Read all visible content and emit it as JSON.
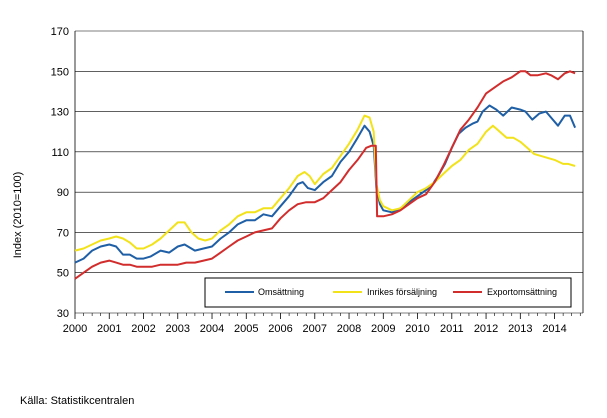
{
  "source_text": "Källa: Statistikcentralen",
  "colors": {
    "omsattning": "#1f5fa6",
    "inrikes": "#f2e21a",
    "export": "#d22d2d",
    "grid": "#000000",
    "background": "#ffffff"
  },
  "chart_data": {
    "type": "line",
    "ylabel": "Index (2010=100)",
    "ylim": [
      30,
      170
    ],
    "yticks": [
      30,
      50,
      70,
      90,
      110,
      130,
      150,
      170
    ],
    "xlim": [
      2000,
      2014.83
    ],
    "xticks": [
      "2000",
      "2001",
      "2002",
      "2003",
      "2004",
      "2005",
      "2006",
      "2007",
      "2008",
      "2009",
      "2010",
      "2011",
      "2012",
      "2013",
      "2014"
    ],
    "grid": "horizontal",
    "legend_position": "lower-right-inside",
    "series": [
      {
        "name": "Omsättning",
        "color": "#1f5fa6",
        "points": [
          [
            2000.0,
            55
          ],
          [
            2000.25,
            57
          ],
          [
            2000.5,
            61
          ],
          [
            2000.75,
            63
          ],
          [
            2001.0,
            64
          ],
          [
            2001.2,
            63
          ],
          [
            2001.4,
            59
          ],
          [
            2001.6,
            59
          ],
          [
            2001.8,
            57
          ],
          [
            2002.0,
            57
          ],
          [
            2002.2,
            58
          ],
          [
            2002.5,
            61
          ],
          [
            2002.75,
            60
          ],
          [
            2003.0,
            63
          ],
          [
            2003.2,
            64
          ],
          [
            2003.5,
            61
          ],
          [
            2003.75,
            62
          ],
          [
            2004.0,
            63
          ],
          [
            2004.25,
            67
          ],
          [
            2004.5,
            70
          ],
          [
            2004.75,
            74
          ],
          [
            2005.0,
            76
          ],
          [
            2005.25,
            76
          ],
          [
            2005.5,
            79
          ],
          [
            2005.75,
            78
          ],
          [
            2006.0,
            83
          ],
          [
            2006.25,
            88
          ],
          [
            2006.5,
            94
          ],
          [
            2006.65,
            95
          ],
          [
            2006.8,
            92
          ],
          [
            2007.0,
            91
          ],
          [
            2007.25,
            95
          ],
          [
            2007.5,
            98
          ],
          [
            2007.75,
            105
          ],
          [
            2008.0,
            110
          ],
          [
            2008.25,
            117
          ],
          [
            2008.45,
            123
          ],
          [
            2008.6,
            120
          ],
          [
            2008.72,
            113
          ],
          [
            2008.8,
            92
          ],
          [
            2008.9,
            84
          ],
          [
            2009.0,
            81
          ],
          [
            2009.25,
            80
          ],
          [
            2009.5,
            82
          ],
          [
            2009.75,
            85
          ],
          [
            2010.0,
            88
          ],
          [
            2010.25,
            91
          ],
          [
            2010.4,
            93
          ],
          [
            2010.6,
            98
          ],
          [
            2010.8,
            104
          ],
          [
            2011.0,
            112
          ],
          [
            2011.2,
            119
          ],
          [
            2011.4,
            122
          ],
          [
            2011.6,
            124
          ],
          [
            2011.75,
            125
          ],
          [
            2011.9,
            130
          ],
          [
            2012.1,
            133
          ],
          [
            2012.3,
            131
          ],
          [
            2012.5,
            128
          ],
          [
            2012.75,
            132
          ],
          [
            2013.0,
            131
          ],
          [
            2013.15,
            130
          ],
          [
            2013.35,
            126
          ],
          [
            2013.55,
            129
          ],
          [
            2013.75,
            130
          ],
          [
            2013.9,
            127
          ],
          [
            2014.1,
            123
          ],
          [
            2014.3,
            128
          ],
          [
            2014.45,
            128
          ],
          [
            2014.6,
            122
          ]
        ]
      },
      {
        "name": "Inrikes försäljning",
        "color": "#f2e21a",
        "points": [
          [
            2000.0,
            61
          ],
          [
            2000.25,
            62
          ],
          [
            2000.5,
            64
          ],
          [
            2000.75,
            66
          ],
          [
            2001.0,
            67
          ],
          [
            2001.2,
            68
          ],
          [
            2001.4,
            67
          ],
          [
            2001.6,
            65
          ],
          [
            2001.8,
            62
          ],
          [
            2002.0,
            62
          ],
          [
            2002.25,
            64
          ],
          [
            2002.5,
            67
          ],
          [
            2002.75,
            71
          ],
          [
            2003.0,
            75
          ],
          [
            2003.2,
            75
          ],
          [
            2003.4,
            70
          ],
          [
            2003.6,
            67
          ],
          [
            2003.8,
            66
          ],
          [
            2004.0,
            67
          ],
          [
            2004.25,
            71
          ],
          [
            2004.5,
            74
          ],
          [
            2004.75,
            78
          ],
          [
            2005.0,
            80
          ],
          [
            2005.25,
            80
          ],
          [
            2005.5,
            82
          ],
          [
            2005.75,
            82
          ],
          [
            2006.0,
            87
          ],
          [
            2006.25,
            92
          ],
          [
            2006.5,
            98
          ],
          [
            2006.7,
            100
          ],
          [
            2006.85,
            98
          ],
          [
            2007.0,
            94
          ],
          [
            2007.25,
            99
          ],
          [
            2007.5,
            102
          ],
          [
            2007.75,
            108
          ],
          [
            2008.0,
            114
          ],
          [
            2008.25,
            121
          ],
          [
            2008.45,
            128
          ],
          [
            2008.6,
            127
          ],
          [
            2008.72,
            120
          ],
          [
            2008.8,
            94
          ],
          [
            2008.9,
            86
          ],
          [
            2009.0,
            83
          ],
          [
            2009.25,
            81
          ],
          [
            2009.5,
            82
          ],
          [
            2009.75,
            86
          ],
          [
            2010.0,
            90
          ],
          [
            2010.25,
            92
          ],
          [
            2010.5,
            95
          ],
          [
            2010.75,
            99
          ],
          [
            2011.0,
            103
          ],
          [
            2011.25,
            106
          ],
          [
            2011.5,
            111
          ],
          [
            2011.75,
            114
          ],
          [
            2012.0,
            120
          ],
          [
            2012.2,
            123
          ],
          [
            2012.4,
            120
          ],
          [
            2012.6,
            117
          ],
          [
            2012.8,
            117
          ],
          [
            2013.0,
            115
          ],
          [
            2013.2,
            112
          ],
          [
            2013.4,
            109
          ],
          [
            2013.6,
            108
          ],
          [
            2013.8,
            107
          ],
          [
            2014.0,
            106
          ],
          [
            2014.25,
            104
          ],
          [
            2014.4,
            104
          ],
          [
            2014.6,
            103
          ]
        ]
      },
      {
        "name": "Exportomsättning",
        "color": "#d22d2d",
        "points": [
          [
            2000.0,
            47
          ],
          [
            2000.25,
            50
          ],
          [
            2000.5,
            53
          ],
          [
            2000.75,
            55
          ],
          [
            2001.0,
            56
          ],
          [
            2001.2,
            55
          ],
          [
            2001.4,
            54
          ],
          [
            2001.6,
            54
          ],
          [
            2001.8,
            53
          ],
          [
            2002.0,
            53
          ],
          [
            2002.25,
            53
          ],
          [
            2002.5,
            54
          ],
          [
            2002.75,
            54
          ],
          [
            2003.0,
            54
          ],
          [
            2003.25,
            55
          ],
          [
            2003.5,
            55
          ],
          [
            2003.75,
            56
          ],
          [
            2004.0,
            57
          ],
          [
            2004.25,
            60
          ],
          [
            2004.5,
            63
          ],
          [
            2004.75,
            66
          ],
          [
            2005.0,
            68
          ],
          [
            2005.25,
            70
          ],
          [
            2005.5,
            71
          ],
          [
            2005.75,
            72
          ],
          [
            2006.0,
            77
          ],
          [
            2006.25,
            81
          ],
          [
            2006.5,
            84
          ],
          [
            2006.75,
            85
          ],
          [
            2007.0,
            85
          ],
          [
            2007.25,
            87
          ],
          [
            2007.5,
            91
          ],
          [
            2007.75,
            95
          ],
          [
            2008.0,
            101
          ],
          [
            2008.25,
            106
          ],
          [
            2008.5,
            112
          ],
          [
            2008.65,
            113
          ],
          [
            2008.78,
            113
          ],
          [
            2008.82,
            78
          ],
          [
            2009.0,
            78
          ],
          [
            2009.25,
            79
          ],
          [
            2009.5,
            81
          ],
          [
            2009.75,
            84
          ],
          [
            2010.0,
            87
          ],
          [
            2010.25,
            89
          ],
          [
            2010.5,
            95
          ],
          [
            2010.75,
            103
          ],
          [
            2011.0,
            112
          ],
          [
            2011.25,
            121
          ],
          [
            2011.5,
            126
          ],
          [
            2011.75,
            132
          ],
          [
            2012.0,
            139
          ],
          [
            2012.25,
            142
          ],
          [
            2012.5,
            145
          ],
          [
            2012.75,
            147
          ],
          [
            2013.0,
            150
          ],
          [
            2013.15,
            150
          ],
          [
            2013.3,
            148
          ],
          [
            2013.5,
            148
          ],
          [
            2013.75,
            149
          ],
          [
            2013.9,
            148
          ],
          [
            2014.1,
            146
          ],
          [
            2014.3,
            149
          ],
          [
            2014.45,
            150
          ],
          [
            2014.6,
            149
          ]
        ]
      }
    ]
  }
}
